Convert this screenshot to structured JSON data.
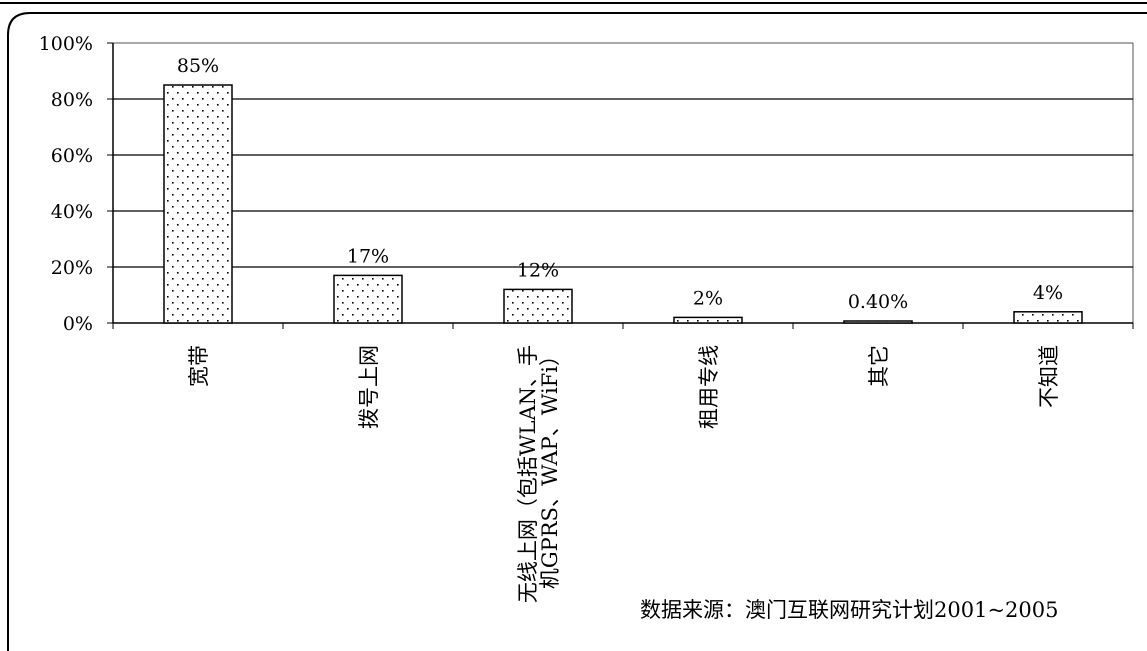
{
  "chart_data": {
    "type": "bar",
    "categories": [
      "宽带",
      "拨号上网",
      "无线上网（包括WLAN、手机GPRS、WAP、WiFi）",
      "租用专线",
      "其它",
      "不知道"
    ],
    "category_label_lines": [
      [
        "宽带"
      ],
      [
        "拨号上网"
      ],
      [
        "无线上网（包括WLAN、手",
        "机GPRS、WAP、WiFi）"
      ],
      [
        "租用专线"
      ],
      [
        "其它"
      ],
      [
        "不知道"
      ]
    ],
    "values": [
      85,
      17,
      12,
      2,
      0.4,
      4
    ],
    "data_labels": [
      "85%",
      "17%",
      "12%",
      "2%",
      "0.40%",
      "4%"
    ],
    "ylim": [
      0,
      100
    ],
    "yticks": [
      0,
      20,
      40,
      60,
      80,
      100
    ],
    "ytick_labels": [
      "0%",
      "20%",
      "40%",
      "60%",
      "80%",
      "100%"
    ],
    "grid": true,
    "bar_pattern": "dotted",
    "title": "",
    "xlabel": "",
    "ylabel": ""
  },
  "source_note": "数据来源：澳门互联网研究计划2001~2005",
  "colors": {
    "bar_fill": "#ffffff",
    "bar_stroke": "#000000",
    "grid": "#000000",
    "frame": "#000000"
  }
}
